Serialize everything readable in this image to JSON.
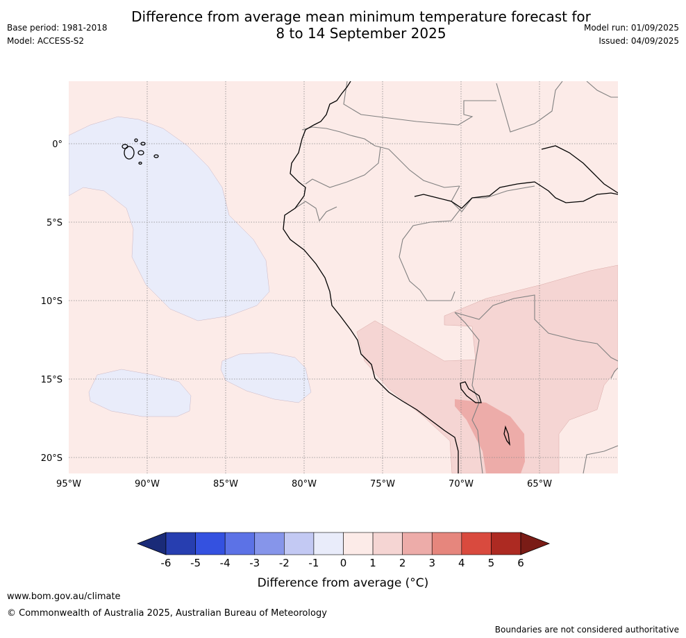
{
  "header": {
    "title_line1": "Difference from average mean minimum temperature forecast for",
    "title_line2": "8 to 14 September 2025",
    "base_period": "Base period: 1981-2018",
    "model": "Model: ACCESS-S2",
    "model_run": "Model run: 01/09/2025",
    "issued": "Issued: 04/09/2025"
  },
  "map": {
    "lat_labels": [
      "0°",
      "5°S",
      "10°S",
      "15°S",
      "20°S"
    ],
    "lon_labels": [
      "95°W",
      "90°W",
      "85°W",
      "80°W",
      "75°W",
      "70°W",
      "65°W"
    ],
    "colors": {
      "bg_0_1": "#fcebe8",
      "band_1_2": "#f5d5d3",
      "band_2_3": "#edaca9",
      "band_m1_0": "#e9ecfa",
      "coast": "#000000",
      "border": "#808080",
      "grid": "#888888"
    }
  },
  "colorbar": {
    "ticks": [
      "-6",
      "-5",
      "-4",
      "-3",
      "-2",
      "-1",
      "0",
      "1",
      "2",
      "3",
      "4",
      "5",
      "6"
    ],
    "colors": [
      "#1a2b78",
      "#273eb0",
      "#3451e0",
      "#5c72e6",
      "#8695ea",
      "#c3c9f3",
      "#e9ecfa",
      "#fcebe8",
      "#f5d5d3",
      "#edaca9",
      "#e6867d",
      "#d94a3e",
      "#ad2a22",
      "#7a1c16"
    ],
    "label": "Difference from average (°C)"
  },
  "footer": {
    "url": "www.bom.gov.au/climate",
    "copyright": "© Commonwealth of Australia 2025, Australian Bureau of Meteorology",
    "disclaimer": "Boundaries are not considered authoritative"
  }
}
